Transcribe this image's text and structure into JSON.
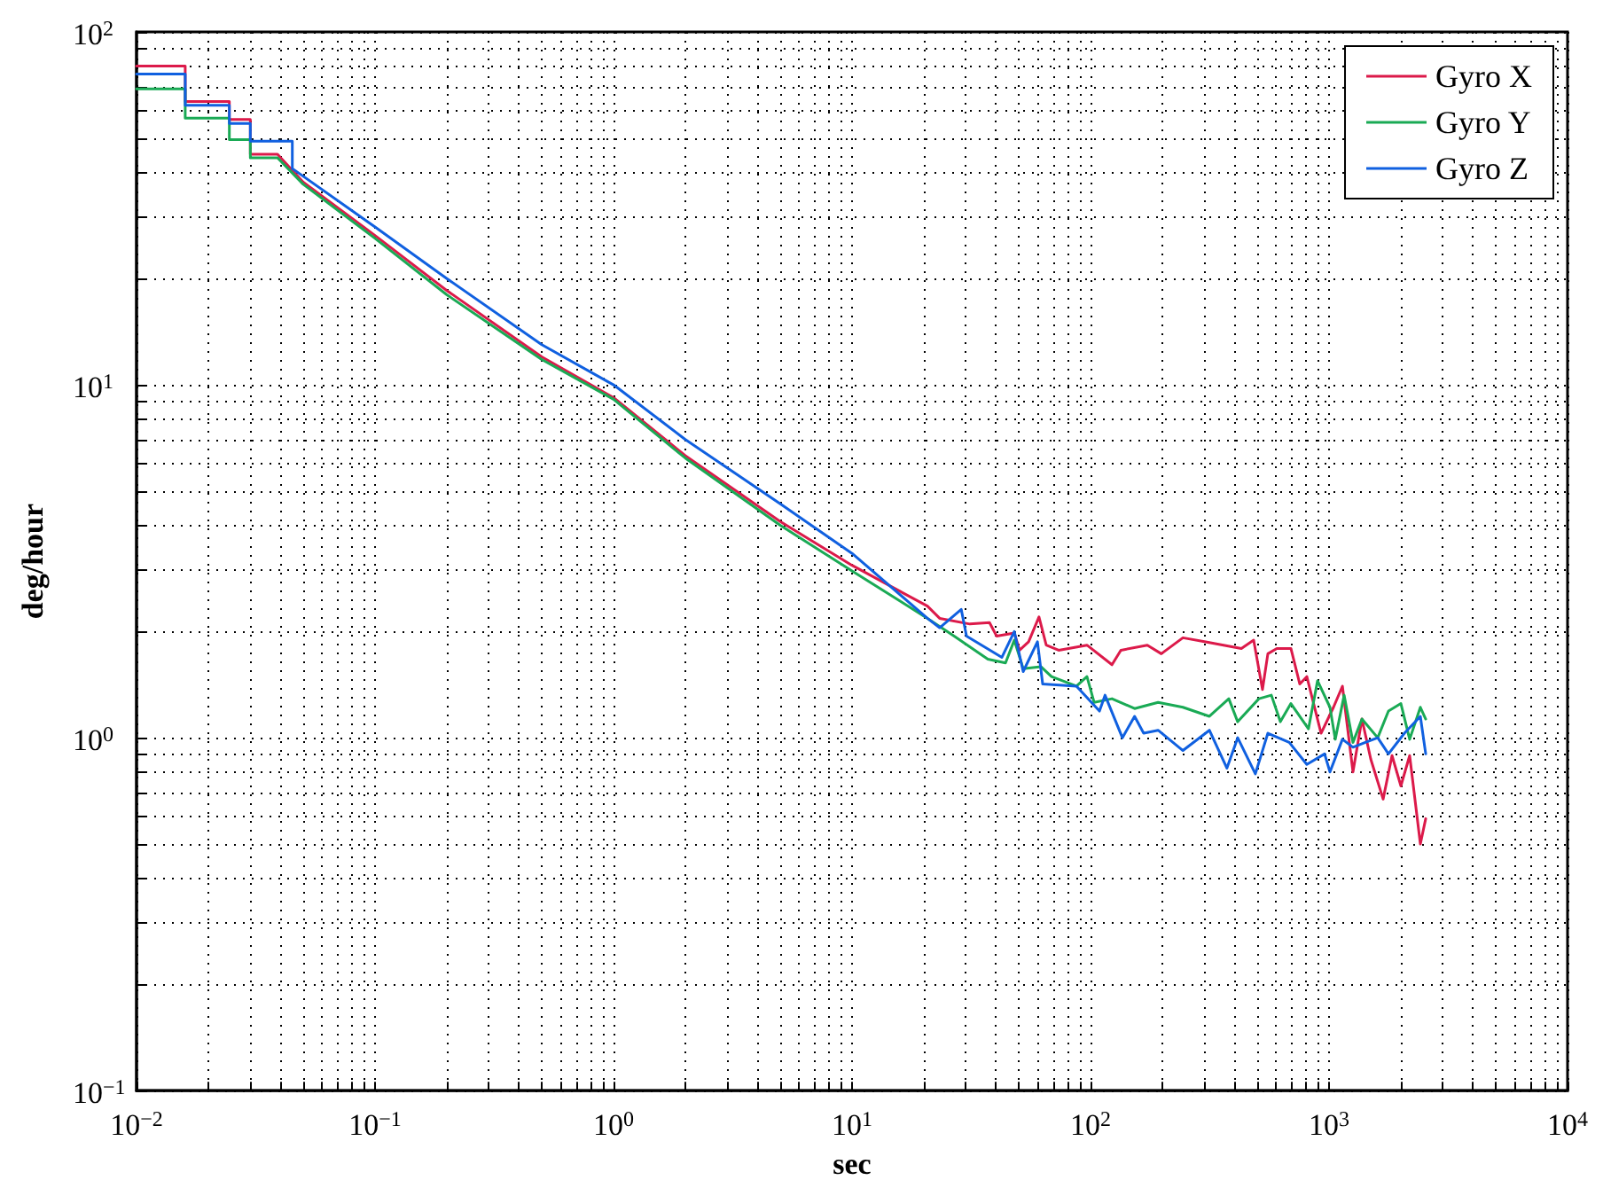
{
  "chart_data": {
    "type": "line",
    "xlabel": "sec",
    "ylabel": "deg/hour",
    "log": "xy",
    "grid": true,
    "legend": "top right",
    "line_style": "solid",
    "xlim": [
      0.01,
      10000
    ],
    "ylim": [
      0.1,
      100
    ],
    "xticks": [
      {
        "value": 0.01,
        "label": "10$^{−2}$"
      },
      {
        "value": 0.02,
        "label": null
      },
      {
        "value": 0.03,
        "label": null
      },
      {
        "value": 0.04,
        "label": null
      },
      {
        "value": 0.05,
        "label": null
      },
      {
        "value": 0.06,
        "label": null
      },
      {
        "value": 0.07,
        "label": null
      },
      {
        "value": 0.08,
        "label": null
      },
      {
        "value": 0.09,
        "label": null
      },
      {
        "value": 0.1,
        "label": "10$^{−1}$"
      },
      {
        "value": 0.2,
        "label": null
      },
      {
        "value": 0.3,
        "label": null
      },
      {
        "value": 0.4,
        "label": null
      },
      {
        "value": 0.5,
        "label": null
      },
      {
        "value": 0.6,
        "label": null
      },
      {
        "value": 0.7,
        "label": null
      },
      {
        "value": 0.8,
        "label": null
      },
      {
        "value": 0.9,
        "label": null
      },
      {
        "value": 1,
        "label": "10$^{0}$"
      },
      {
        "value": 2,
        "label": null
      },
      {
        "value": 3,
        "label": null
      },
      {
        "value": 4,
        "label": null
      },
      {
        "value": 5,
        "label": null
      },
      {
        "value": 6,
        "label": null
      },
      {
        "value": 7,
        "label": null
      },
      {
        "value": 8,
        "label": null
      },
      {
        "value": 9,
        "label": null
      },
      {
        "value": 10,
        "label": "10$^{1}$"
      },
      {
        "value": 20,
        "label": null
      },
      {
        "value": 30,
        "label": null
      },
      {
        "value": 40,
        "label": null
      },
      {
        "value": 50,
        "label": null
      },
      {
        "value": 60,
        "label": null
      },
      {
        "value": 70,
        "label": null
      },
      {
        "value": 80,
        "label": null
      },
      {
        "value": 90,
        "label": null
      },
      {
        "value": 100,
        "label": "10$^{2}$"
      },
      {
        "value": 200,
        "label": null
      },
      {
        "value": 300,
        "label": null
      },
      {
        "value": 400,
        "label": null
      },
      {
        "value": 500,
        "label": null
      },
      {
        "value": 600,
        "label": null
      },
      {
        "value": 700,
        "label": null
      },
      {
        "value": 800,
        "label": null
      },
      {
        "value": 900,
        "label": null
      },
      {
        "value": 1000,
        "label": "10$^{3}$"
      },
      {
        "value": 2000,
        "label": null
      },
      {
        "value": 3000,
        "label": null
      },
      {
        "value": 4000,
        "label": null
      },
      {
        "value": 5000,
        "label": null
      },
      {
        "value": 6000,
        "label": null
      },
      {
        "value": 7000,
        "label": null
      },
      {
        "value": 8000,
        "label": null
      },
      {
        "value": 9000,
        "label": null
      },
      {
        "value": 10000,
        "label": "10$^{4}$"
      }
    ],
    "yticks": [
      {
        "value": 0.1,
        "label": "10$^{−1}$"
      },
      {
        "value": 0.2,
        "label": null
      },
      {
        "value": 0.3,
        "label": null
      },
      {
        "value": 0.4,
        "label": null
      },
      {
        "value": 0.5,
        "label": null
      },
      {
        "value": 0.6,
        "label": null
      },
      {
        "value": 0.7,
        "label": null
      },
      {
        "value": 0.8,
        "label": null
      },
      {
        "value": 0.9,
        "label": null
      },
      {
        "value": 1,
        "label": "10$^{0}$"
      },
      {
        "value": 2,
        "label": null
      },
      {
        "value": 3,
        "label": null
      },
      {
        "value": 4,
        "label": null
      },
      {
        "value": 5,
        "label": null
      },
      {
        "value": 6,
        "label": null
      },
      {
        "value": 7,
        "label": null
      },
      {
        "value": 8,
        "label": null
      },
      {
        "value": 9,
        "label": null
      },
      {
        "value": 10,
        "label": "10$^{1}$"
      },
      {
        "value": 20,
        "label": null
      },
      {
        "value": 30,
        "label": null
      },
      {
        "value": 40,
        "label": null
      },
      {
        "value": 50,
        "label": null
      },
      {
        "value": 60,
        "label": null
      },
      {
        "value": 70,
        "label": null
      },
      {
        "value": 80,
        "label": null
      },
      {
        "value": 90,
        "label": null
      },
      {
        "value": 100,
        "label": "10$^{2}$"
      }
    ],
    "series": [
      {
        "name": "Gyro X",
        "color": "#dc1a4a",
        "x": [
          0.01,
          0.016,
          0.016,
          0.0245,
          0.0245,
          0.03,
          0.03,
          0.039,
          0.05,
          0.1,
          0.2,
          0.5,
          1,
          2,
          5,
          10,
          20.7,
          23.3,
          31.2,
          37.7,
          40.4,
          47.9,
          50.4,
          55,
          60.8,
          65.2,
          73.5,
          96.6,
          123,
          134,
          173,
          198,
          244,
          304,
          429,
          483,
          526,
          554,
          604,
          692,
          754,
          807,
          926,
          1044,
          1138,
          1260,
          1374,
          1496,
          1686,
          1837,
          2001,
          2178,
          2415,
          2543
        ],
        "values": [
          80,
          80,
          63.5,
          63.5,
          56.5,
          56.5,
          45,
          45,
          37.5,
          26.5,
          18.5,
          12,
          9.2,
          6.3,
          4.1,
          3.08,
          2.36,
          2.18,
          2.1,
          2.12,
          1.94,
          1.98,
          1.77,
          1.87,
          2.2,
          1.83,
          1.77,
          1.83,
          1.61,
          1.77,
          1.83,
          1.73,
          1.92,
          1.87,
          1.79,
          1.89,
          1.37,
          1.73,
          1.79,
          1.79,
          1.42,
          1.49,
          1.03,
          1.22,
          1.4,
          0.8,
          1.13,
          0.87,
          0.67,
          0.89,
          0.73,
          0.89,
          0.5,
          0.59
        ]
      },
      {
        "name": "Gyro Y",
        "color": "#1aaa55",
        "x": [
          0.01,
          0.016,
          0.016,
          0.0245,
          0.0245,
          0.03,
          0.03,
          0.039,
          0.05,
          0.1,
          0.2,
          0.5,
          1,
          2,
          5,
          10,
          20.7,
          26.8,
          37.1,
          44,
          47.9,
          52.2,
          61.9,
          68.6,
          87.3,
          96.6,
          103.5,
          123,
          153,
          192,
          244,
          315,
          380,
          414,
          508,
          573,
          625,
          692,
          820,
          895,
          1009,
          1062,
          1157,
          1260,
          1374,
          1600,
          1775,
          2001,
          2178,
          2415,
          2543
        ],
        "values": [
          69,
          69,
          57,
          57,
          49.5,
          49.5,
          44,
          44,
          37,
          26,
          18,
          11.8,
          9.1,
          6.2,
          4,
          2.97,
          2.18,
          1.94,
          1.67,
          1.63,
          1.89,
          1.57,
          1.59,
          1.49,
          1.4,
          1.49,
          1.26,
          1.29,
          1.21,
          1.26,
          1.22,
          1.15,
          1.29,
          1.11,
          1.29,
          1.32,
          1.11,
          1.25,
          1.06,
          1.45,
          1.22,
          0.99,
          1.32,
          0.97,
          1.13,
          1,
          1.19,
          1.25,
          0.99,
          1.22,
          1.13
        ]
      },
      {
        "name": "Gyro Z",
        "color": "#1060e0",
        "x": [
          0.01,
          0.016,
          0.016,
          0.0245,
          0.0245,
          0.03,
          0.03,
          0.045,
          0.045,
          0.1,
          0.2,
          0.5,
          1,
          2,
          5,
          10,
          20.7,
          23.3,
          28.7,
          30.2,
          42.5,
          47.9,
          52.2,
          59.9,
          63,
          87.3,
          109,
          115,
          136,
          153,
          167,
          192,
          244,
          315,
          373,
          414,
          491,
          554,
          681,
          807,
          958,
          1009,
          1138,
          1260,
          1420,
          1600,
          1775,
          2071,
          2415,
          2543
        ],
        "values": [
          76,
          76,
          62,
          62,
          55,
          55,
          49,
          49,
          41,
          28,
          20,
          13,
          10,
          7,
          4.6,
          3.33,
          2.18,
          2.05,
          2.31,
          1.94,
          1.69,
          2,
          1.54,
          1.87,
          1.42,
          1.4,
          1.19,
          1.32,
          1,
          1.15,
          1.03,
          1.05,
          0.92,
          1.05,
          0.82,
          1,
          0.79,
          1.03,
          0.97,
          0.84,
          0.9,
          0.8,
          0.99,
          0.94,
          0.97,
          1,
          0.9,
          1.03,
          1.15,
          0.9
        ]
      }
    ]
  }
}
